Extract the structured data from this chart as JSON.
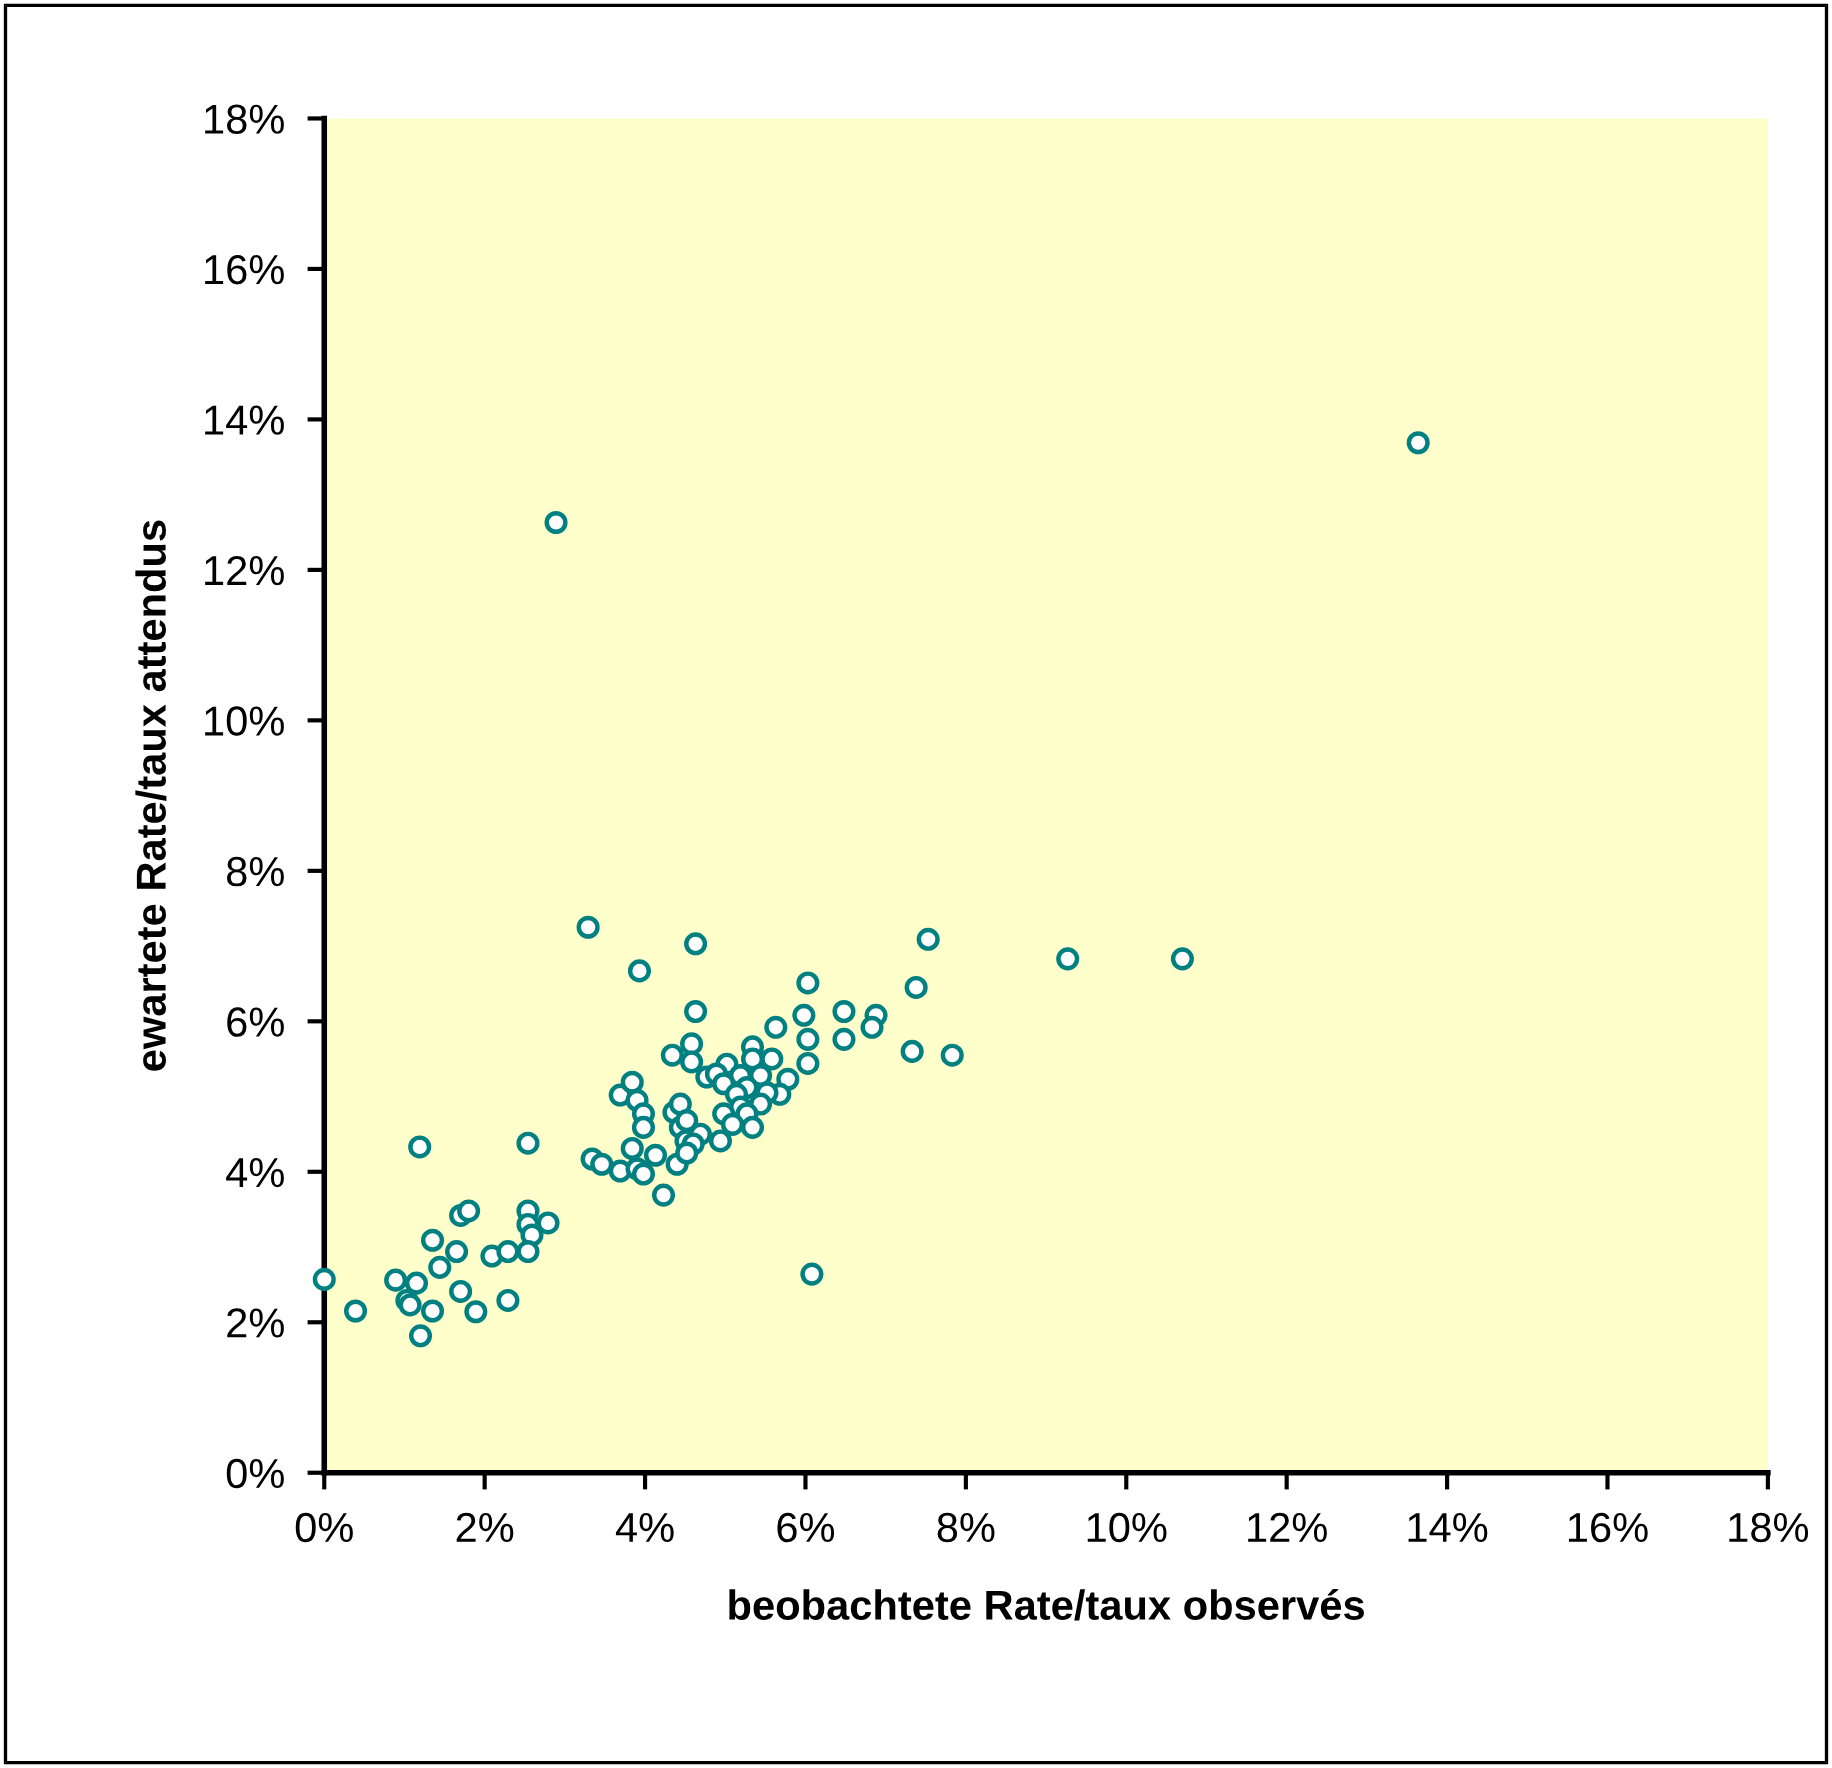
{
  "chart_data": {
    "type": "scatter",
    "xlabel": "beobachtete Rate/taux observés",
    "ylabel": "ewartete Rate/taux attendus",
    "xlim": [
      0,
      18
    ],
    "ylim": [
      0,
      18
    ],
    "xticks": [
      {
        "value": 0,
        "label": "0%"
      },
      {
        "value": 2,
        "label": "2%"
      },
      {
        "value": 4,
        "label": "4%"
      },
      {
        "value": 6,
        "label": "6%"
      },
      {
        "value": 8,
        "label": "8%"
      },
      {
        "value": 10,
        "label": "10%"
      },
      {
        "value": 12,
        "label": "12%"
      },
      {
        "value": 14,
        "label": "14%"
      },
      {
        "value": 16,
        "label": "16%"
      },
      {
        "value": 18,
        "label": "18%"
      }
    ],
    "yticks": [
      {
        "value": 0,
        "label": "0%"
      },
      {
        "value": 2,
        "label": "2%"
      },
      {
        "value": 4,
        "label": "4%"
      },
      {
        "value": 6,
        "label": "6%"
      },
      {
        "value": 8,
        "label": "8%"
      },
      {
        "value": 10,
        "label": "10%"
      },
      {
        "value": 12,
        "label": "12%"
      },
      {
        "value": 14,
        "label": "14%"
      },
      {
        "value": 16,
        "label": "16%"
      },
      {
        "value": 18,
        "label": "18%"
      }
    ],
    "grid": false,
    "marker": "circle",
    "series": [
      {
        "color": "#008080",
        "x": [
          0.0,
          0.39,
          0.89,
          1.03,
          1.15,
          1.07,
          1.35,
          1.2,
          1.19,
          1.35,
          1.44,
          1.65,
          1.7,
          1.8,
          1.7,
          1.89,
          2.09,
          2.29,
          2.29,
          2.54,
          2.54,
          2.54,
          2.59,
          2.54,
          2.79,
          3.29,
          3.93,
          3.34,
          3.46,
          3.69,
          3.69,
          3.84,
          3.9,
          3.98,
          3.98,
          3.84,
          3.9,
          3.98,
          4.23,
          4.13,
          4.34,
          4.58,
          4.58,
          4.63,
          4.63,
          4.36,
          4.44,
          4.44,
          4.4,
          4.51,
          6.03,
          7.53,
          7.38,
          5.98,
          6.48,
          6.88,
          6.83,
          5.63,
          6.03,
          6.48,
          7.33,
          7.83,
          6.03,
          5.34,
          5.34,
          5.58,
          5.02,
          4.77,
          4.89,
          5.19,
          5.44,
          5.78,
          4.98,
          5.27,
          5.68,
          5.14,
          5.52,
          5.44,
          5.19,
          4.98,
          5.27,
          5.09,
          5.34,
          4.52,
          4.69,
          4.94,
          4.6,
          4.52,
          6.08,
          9.27,
          2.89,
          13.64,
          10.7
        ],
        "values": [
          2.57,
          2.15,
          2.56,
          2.29,
          2.52,
          2.23,
          2.15,
          1.82,
          4.33,
          3.09,
          2.73,
          2.94,
          3.42,
          3.48,
          2.41,
          2.14,
          2.88,
          2.94,
          2.29,
          4.38,
          3.48,
          3.3,
          3.16,
          2.94,
          3.32,
          7.25,
          6.67,
          4.17,
          4.1,
          4.01,
          5.02,
          5.19,
          4.95,
          4.77,
          4.59,
          4.31,
          4.04,
          3.97,
          3.69,
          4.22,
          5.55,
          5.7,
          5.46,
          7.03,
          6.13,
          4.79,
          4.9,
          4.59,
          4.1,
          4.41,
          6.51,
          7.09,
          6.45,
          6.08,
          6.13,
          6.08,
          5.92,
          5.92,
          5.76,
          5.76,
          5.6,
          5.55,
          5.44,
          5.66,
          5.5,
          5.5,
          5.43,
          5.26,
          5.3,
          5.28,
          5.28,
          5.23,
          5.17,
          5.12,
          5.03,
          5.03,
          5.05,
          4.9,
          4.86,
          4.77,
          4.77,
          4.63,
          4.59,
          4.68,
          4.5,
          4.41,
          4.37,
          4.25,
          2.64,
          6.83,
          12.63,
          13.69,
          6.83
        ]
      }
    ]
  }
}
